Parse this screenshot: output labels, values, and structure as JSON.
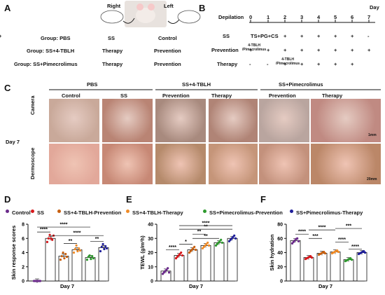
{
  "panels": {
    "a": "A",
    "b": "B",
    "c": "C",
    "d": "D",
    "e": "E",
    "f": "F"
  },
  "panel_a": {
    "right_label": "Right",
    "left_label": "Left",
    "rows": [
      {
        "group": "Group: PBS",
        "right": "SS",
        "left": "Control"
      },
      {
        "group": "Group: SS+4-TBLH",
        "right": "Therapy",
        "left": "Prevention"
      },
      {
        "group": "Group: SS+Pimecrolimus",
        "right": "Therapy",
        "left": "Prevention"
      }
    ]
  },
  "panel_b": {
    "day_label": "Day",
    "depilation_label": "Depilation",
    "days": [
      "0",
      "1",
      "2",
      "3",
      "4",
      "5",
      "6",
      "7"
    ],
    "rows": [
      {
        "label": "SS",
        "note": "TS+PG+CS",
        "marks": [
          "+",
          "+",
          "+",
          "+",
          "+",
          "+",
          "-"
        ]
      },
      {
        "label": "Prevention",
        "note": "4-TBLH\n/Pimecrolimus",
        "marks": [
          "+",
          "+",
          "+",
          "+",
          "+",
          "+",
          "+",
          "+"
        ]
      },
      {
        "label": "Therapy",
        "note": "4-TBLH\n/Pimecrolimus",
        "marks": [
          "-",
          "-",
          "+",
          "+",
          "+",
          "+",
          "+"
        ]
      }
    ]
  },
  "panel_c": {
    "groups": [
      "PBS",
      "SS+4-TBLH",
      "SS+Pimecrolimus"
    ],
    "columns": [
      "Control",
      "SS",
      "Prevention",
      "Therapy",
      "Prevention",
      "Therapy"
    ],
    "rows": [
      "Camera",
      "Dermoscope"
    ],
    "day_label": "Day 7",
    "scale_camera": "1mm",
    "scale_dermoscope": "20mm"
  },
  "legend": [
    {
      "name": "Control",
      "color": "#6a2a8a"
    },
    {
      "name": "SS",
      "color": "#d7191c"
    },
    {
      "name": "SS+4-TBLH-Prevention",
      "color": "#c86010"
    },
    {
      "name": "SS+4-TBLH-Therapy",
      "color": "#f08c28"
    },
    {
      "name": "SS+Pimecrolimus-Prevention",
      "color": "#2e9a2e"
    },
    {
      "name": "SS+Pimecrolimus-Therapy",
      "color": "#1f1f9a"
    }
  ],
  "chart_data": [
    {
      "type": "bar",
      "ylabel": "Skin response scores",
      "xlabel": "Day 7",
      "ylim": [
        0,
        8
      ],
      "yticks": [
        0,
        2,
        4,
        6,
        8
      ],
      "values": [
        0,
        6,
        3.5,
        4.4,
        3.3,
        4.7
      ],
      "points": [
        [
          0,
          0,
          0,
          0,
          0,
          0
        ],
        [
          5.5,
          6,
          6.5,
          6,
          5.8,
          6.4
        ],
        [
          3,
          3.5,
          4,
          3.2,
          3.8,
          3.4
        ],
        [
          4,
          4.5,
          5,
          4.2,
          4.6,
          4.3
        ],
        [
          3,
          3.4,
          3.6,
          3.1,
          3.5,
          3.2
        ],
        [
          4.2,
          4.8,
          5.2,
          4.5,
          4.9,
          4.6
        ]
      ],
      "significance": [
        {
          "from": 0,
          "to": 1,
          "label": "****",
          "y": 6.9
        },
        {
          "from": 0,
          "to": 4,
          "label": "****",
          "y": 7.6
        },
        {
          "from": 2,
          "to": 3,
          "label": "**",
          "y": 5.3
        },
        {
          "from": 1,
          "to": 5,
          "label": "****",
          "y": 6.4
        },
        {
          "from": 4,
          "to": 5,
          "label": "**",
          "y": 5.6
        }
      ]
    },
    {
      "type": "bar",
      "ylabel": "TEWL (g/m²h)",
      "xlabel": "Day 7",
      "ylim": [
        0,
        40
      ],
      "yticks": [
        0,
        10,
        20,
        30,
        40
      ],
      "values": [
        7,
        18,
        22,
        25,
        27,
        30
      ],
      "points": [
        [
          5,
          6,
          7,
          8,
          9,
          6
        ],
        [
          16,
          17,
          18,
          19,
          20,
          18
        ],
        [
          20,
          21,
          22,
          23,
          24,
          22
        ],
        [
          23,
          24,
          25,
          26,
          27,
          25
        ],
        [
          25,
          26,
          27,
          28,
          29,
          27
        ],
        [
          28,
          29,
          30,
          31,
          32,
          30
        ]
      ],
      "significance": [
        {
          "from": 0,
          "to": 1,
          "label": "****",
          "y": 22
        },
        {
          "from": 1,
          "to": 2,
          "label": "*",
          "y": 26
        },
        {
          "from": 2,
          "to": 4,
          "label": "**",
          "y": 30
        },
        {
          "from": 2,
          "to": 3,
          "label": "**",
          "y": 33
        },
        {
          "from": 1,
          "to": 5,
          "label": "**",
          "y": 36.5
        },
        {
          "from": 1,
          "to": 5,
          "label": "****",
          "y": 39
        }
      ]
    },
    {
      "type": "bar",
      "ylabel": "Skin hydration",
      "xlabel": "Day 7",
      "ylim": [
        0,
        80
      ],
      "yticks": [
        0,
        20,
        40,
        60,
        80
      ],
      "values": [
        57,
        33,
        39,
        41,
        30,
        40
      ],
      "points": [
        [
          53,
          55,
          57,
          59,
          60,
          56
        ],
        [
          31,
          32,
          33,
          34,
          35,
          33
        ],
        [
          37,
          38,
          39,
          40,
          41,
          39
        ],
        [
          39,
          40,
          41,
          42,
          43,
          41
        ],
        [
          28,
          29,
          30,
          31,
          32,
          30
        ],
        [
          38,
          39,
          40,
          41,
          42,
          40
        ]
      ],
      "significance": [
        {
          "from": 0,
          "to": 1,
          "label": "****",
          "y": 66
        },
        {
          "from": 1,
          "to": 3,
          "label": "****",
          "y": 72
        },
        {
          "from": 1,
          "to": 2,
          "label": "***",
          "y": 60
        },
        {
          "from": 3,
          "to": 5,
          "label": "***",
          "y": 74
        },
        {
          "from": 3,
          "to": 4,
          "label": "****",
          "y": 55
        },
        {
          "from": 4,
          "to": 5,
          "label": "****",
          "y": 45
        }
      ]
    }
  ]
}
